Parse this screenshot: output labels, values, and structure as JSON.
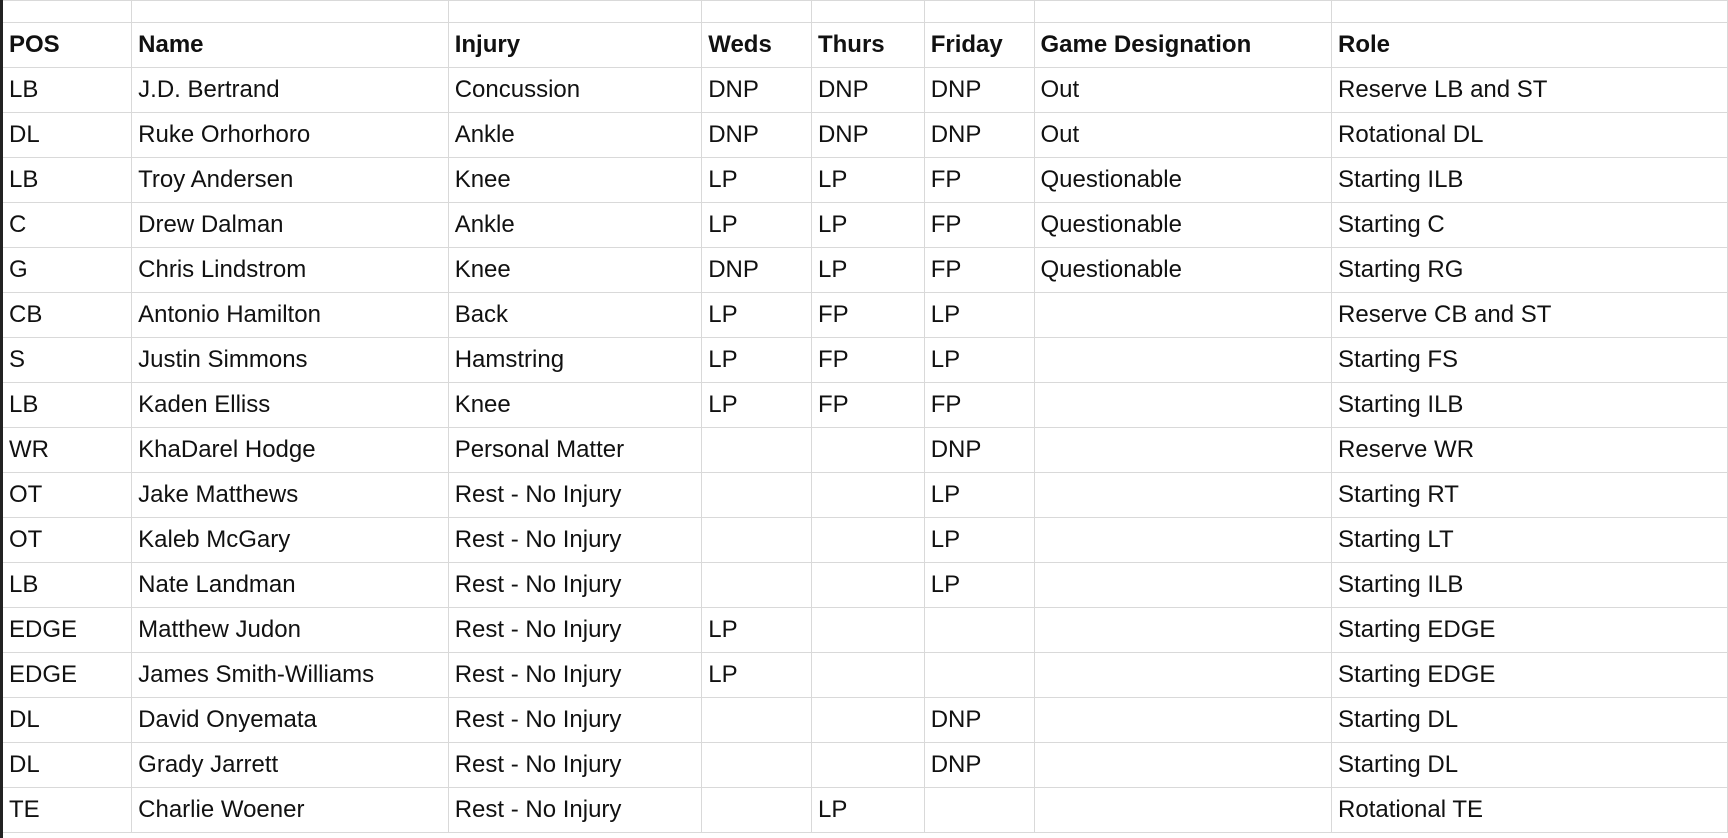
{
  "columns": [
    "POS",
    "Name",
    "Injury",
    "Weds",
    "Thurs",
    "Friday",
    "Game Designation",
    "Role"
  ],
  "rows": [
    [
      "LB",
      "J.D. Bertrand",
      "Concussion",
      "DNP",
      "DNP",
      "DNP",
      "Out",
      "Reserve LB and ST"
    ],
    [
      "DL",
      "Ruke Orhorhoro",
      "Ankle",
      "DNP",
      "DNP",
      "DNP",
      "Out",
      "Rotational DL"
    ],
    [
      "LB",
      "Troy Andersen",
      "Knee",
      "LP",
      "LP",
      "FP",
      "Questionable",
      "Starting ILB"
    ],
    [
      "C",
      "Drew Dalman",
      "Ankle",
      "LP",
      "LP",
      "FP",
      "Questionable",
      "Starting C"
    ],
    [
      "G",
      "Chris Lindstrom",
      "Knee",
      "DNP",
      "LP",
      "FP",
      "Questionable",
      "Starting RG"
    ],
    [
      "CB",
      "Antonio Hamilton",
      "Back",
      "LP",
      "FP",
      "LP",
      "",
      "Reserve CB and ST"
    ],
    [
      "S",
      "Justin Simmons",
      "Hamstring",
      "LP",
      "FP",
      "LP",
      "",
      "Starting FS"
    ],
    [
      "LB",
      "Kaden Elliss",
      "Knee",
      "LP",
      "FP",
      "FP",
      "",
      "Starting ILB"
    ],
    [
      "WR",
      "KhaDarel Hodge",
      "Personal Matter",
      "",
      "",
      "DNP",
      "",
      "Reserve WR"
    ],
    [
      "OT",
      "Jake Matthews",
      "Rest - No Injury",
      "",
      "",
      "LP",
      "",
      "Starting RT"
    ],
    [
      "OT",
      "Kaleb McGary",
      "Rest - No Injury",
      "",
      "",
      "LP",
      "",
      "Starting LT"
    ],
    [
      "LB",
      "Nate Landman",
      "Rest - No Injury",
      "",
      "",
      "LP",
      "",
      "Starting ILB"
    ],
    [
      "EDGE",
      "Matthew Judon",
      "Rest - No Injury",
      "LP",
      "",
      "",
      "",
      "Starting EDGE"
    ],
    [
      "EDGE",
      "James Smith-Williams",
      "Rest - No Injury",
      "LP",
      "",
      "",
      "",
      "Starting EDGE"
    ],
    [
      "DL",
      "David Onyemata",
      "Rest - No Injury",
      "",
      "",
      "DNP",
      "",
      "Starting DL"
    ],
    [
      "DL",
      "Grady Jarrett",
      "Rest - No Injury",
      "",
      "",
      "DNP",
      "",
      "Starting DL"
    ],
    [
      "TE",
      "Charlie Woener",
      "Rest - No Injury",
      "",
      "LP",
      "",
      "",
      "Rotational TE"
    ]
  ]
}
